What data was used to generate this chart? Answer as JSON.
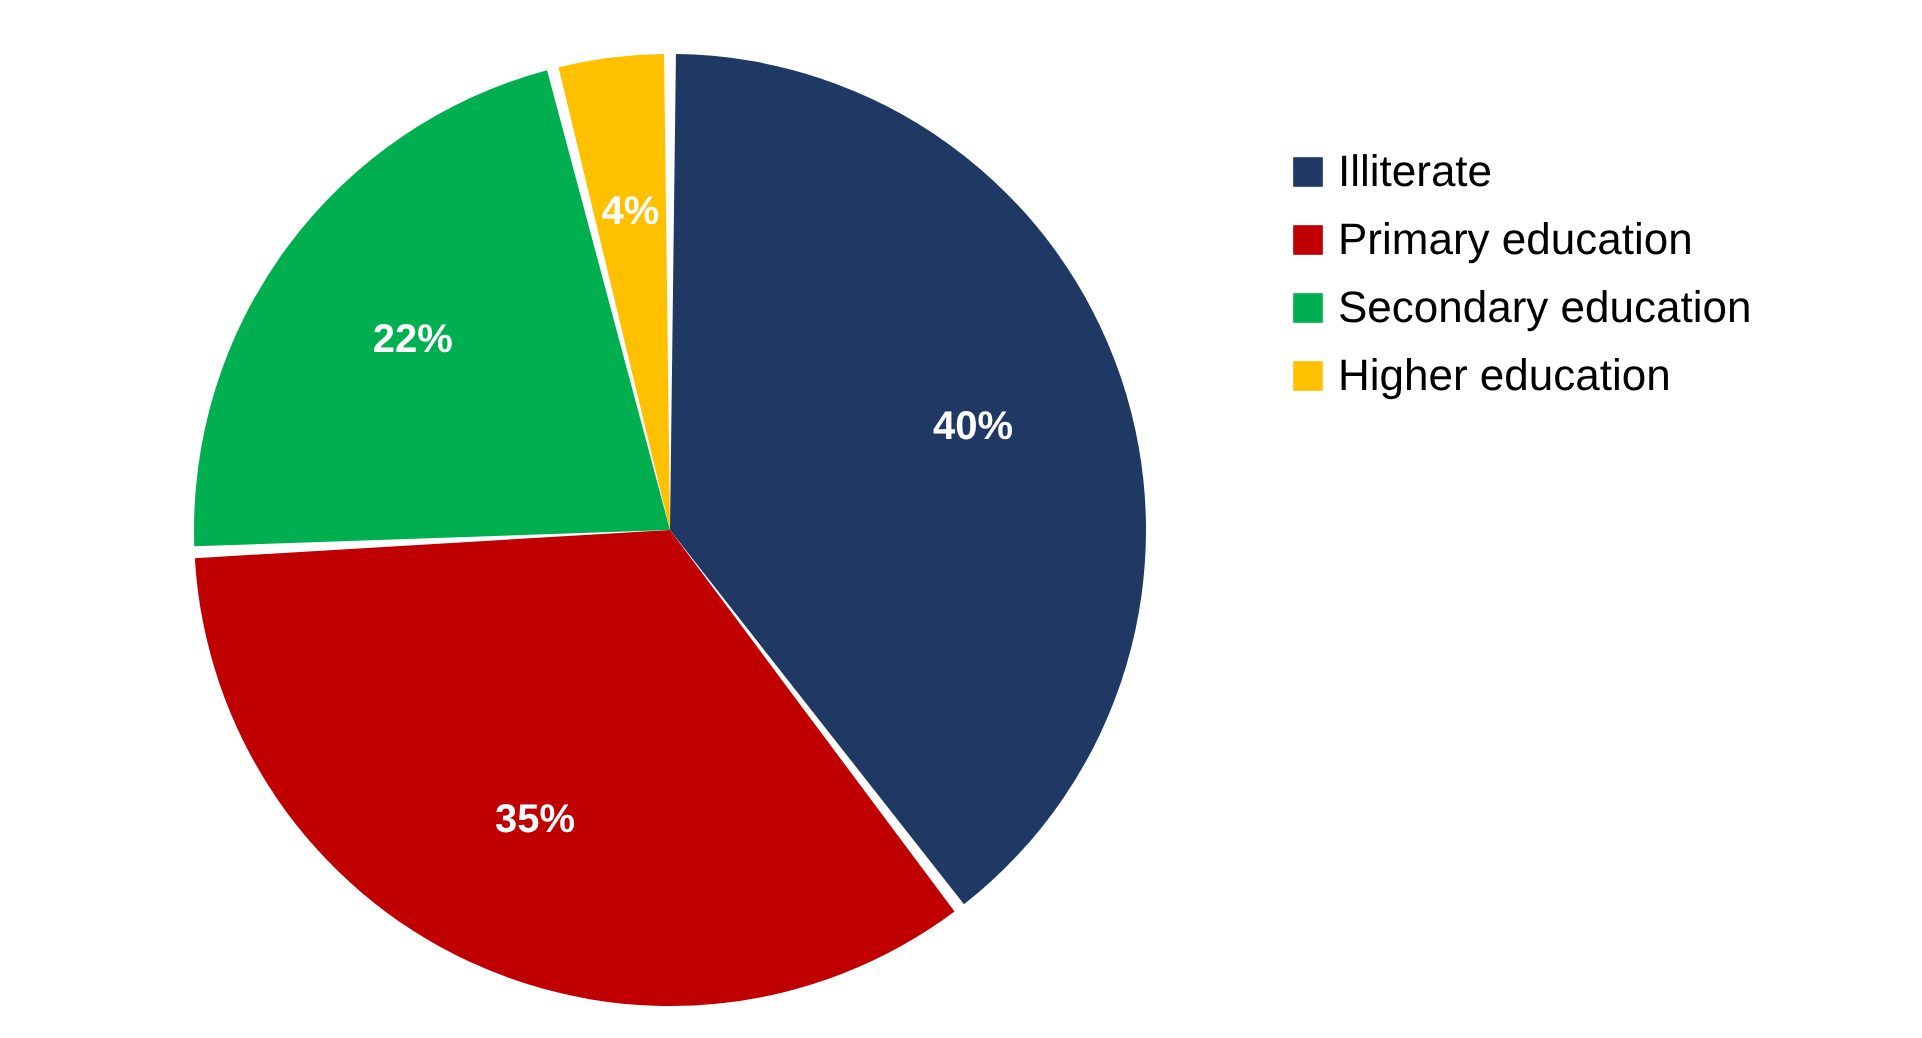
{
  "chart_data": {
    "type": "pie",
    "categories": [
      "Illiterate",
      "Primary education",
      "Secondary education",
      "Higher education"
    ],
    "values": [
      40,
      35,
      22,
      4
    ],
    "colors": [
      "#1f3864",
      "#c00000",
      "#00b050",
      "#ffc000"
    ],
    "value_labels": [
      "40%",
      "35%",
      "22%",
      "4%"
    ],
    "legend": "right"
  }
}
